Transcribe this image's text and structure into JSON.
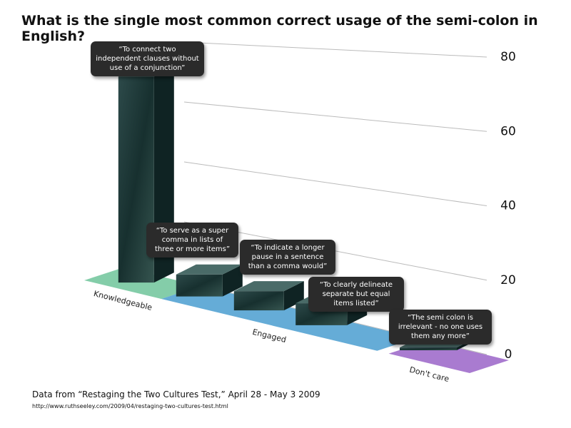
{
  "chart_data": {
    "type": "bar",
    "title": "What is the single most common correct usage of the semi-colon in English?",
    "categories": [
      "“To connect two independent clauses without use of a conjunction”",
      "“To serve as a super comma in lists of three or more items”",
      "“To indicate a longer pause in a sentence than a comma would”",
      "“To clearly delineate separate but equal items listed”",
      "“The semi colon is irrelevant - no one uses them any more”"
    ],
    "values": [
      75,
      8,
      7,
      8,
      1
    ],
    "color": "#1f3a3a",
    "groups": [
      {
        "name": "Knowledgeable",
        "color": "#6fc49a"
      },
      {
        "name": "Engaged",
        "color": "#4a9ed0"
      },
      {
        "name": "Don't care",
        "color": "#9a64c8"
      }
    ],
    "ylim": [
      0,
      80
    ],
    "yticks": [
      0,
      20,
      40,
      60,
      80
    ],
    "grid": true,
    "source": "Data from “Restaging the Two Cultures Test,” April 28 - May 3 2009",
    "url": "http://www.ruthseeley.com/2009/04/restaging-two-cultures-test.html"
  }
}
